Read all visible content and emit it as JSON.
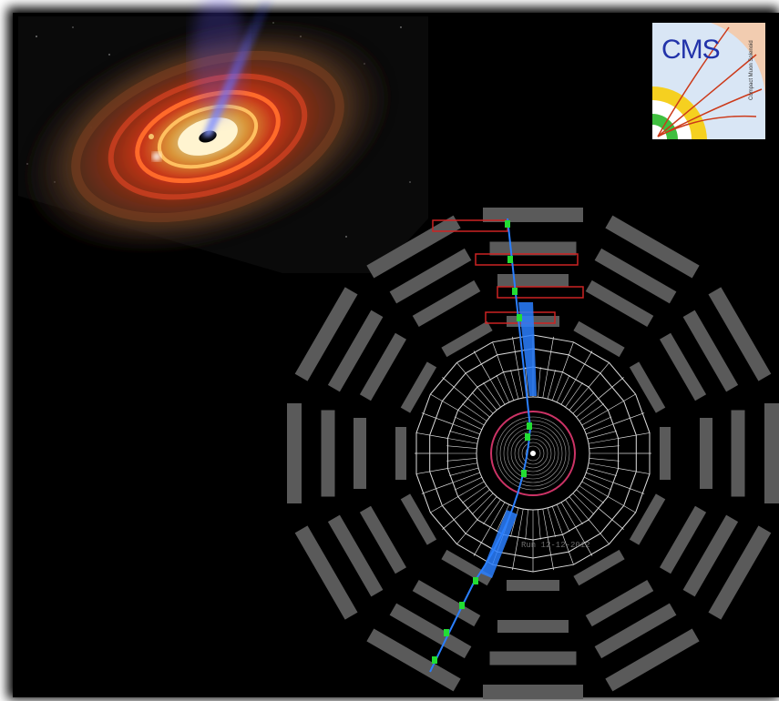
{
  "logo": {
    "title": "CMS",
    "subtitle": "Compact Muon Solenoid"
  },
  "event_stamp": "Run 12-12-2012",
  "icons": [
    "black-hole-accretion-disk-image",
    "cms-logo",
    "cms-detector-event-display"
  ],
  "colors": {
    "background": "#000000",
    "frame_shadow": "#ffffff",
    "muon_chamber": "#5a5a5a",
    "muon_track": "#2a7fff",
    "hit": "#22dd33",
    "highlight_chamber": "#cc2222",
    "calorimeter_wire": "#dddddd",
    "tracker_ring": "#cc3366"
  }
}
